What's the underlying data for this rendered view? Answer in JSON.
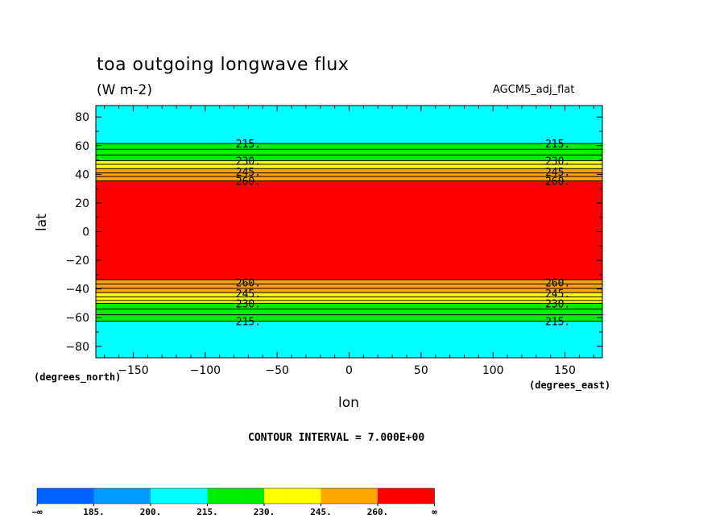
{
  "chart_data": {
    "type": "contour",
    "title": "toa outgoing longwave flux",
    "units": "(W m-2)",
    "dataset": "AGCM5_adj_flat",
    "xlabel": "lon",
    "ylabel": "lat",
    "x_units": "(degrees_east)",
    "y_units": "(degrees_north)",
    "xlim": [
      -176,
      176
    ],
    "ylim": [
      -88,
      88
    ],
    "x_ticks": [
      -150,
      -100,
      -50,
      0,
      50,
      100,
      150
    ],
    "x_tick_labels": [
      "−150",
      "−100",
      "−50",
      "0",
      "50",
      "100",
      "150"
    ],
    "y_ticks": [
      80,
      60,
      40,
      20,
      0,
      -20,
      -40,
      -60,
      -80
    ],
    "y_tick_labels": [
      "80",
      "60",
      "40",
      "20",
      "0",
      "−20",
      "−40",
      "−60",
      "−80"
    ],
    "contour_interval": "CONTOUR INTERVAL = 7.000E+00",
    "latitude_bands": [
      {
        "lat_from": 88,
        "lat_to": 61.5,
        "color": "#00ffff"
      },
      {
        "lat_from": 61.5,
        "lat_to": 49.5,
        "color": "#00ee00"
      },
      {
        "lat_from": 49.5,
        "lat_to": 44.0,
        "color": "#ffff00"
      },
      {
        "lat_from": 44.0,
        "lat_to": 35.5,
        "color": "#ffa500"
      },
      {
        "lat_from": 35.5,
        "lat_to": -33.5,
        "color": "#ff0000"
      },
      {
        "lat_from": -33.5,
        "lat_to": -42.5,
        "color": "#ffa500"
      },
      {
        "lat_from": -42.5,
        "lat_to": -50.0,
        "color": "#ffff00"
      },
      {
        "lat_from": -50.0,
        "lat_to": -62.5,
        "color": "#00ee00"
      },
      {
        "lat_from": -62.5,
        "lat_to": -88,
        "color": "#00ffff"
      }
    ],
    "contour_lines": [
      61.5,
      57.5,
      53.5,
      49.5,
      47.0,
      44.0,
      41.0,
      38.5,
      35.5,
      -33.5,
      -36.5,
      -39.5,
      -42.5,
      -45.5,
      -48.0,
      -50.0,
      -54.0,
      -58.0,
      -62.5
    ],
    "contour_labels": [
      {
        "text": "215.",
        "lat": 61.5
      },
      {
        "text": "230.",
        "lat": 49.5
      },
      {
        "text": "245.",
        "lat": 42.0
      },
      {
        "text": "260.",
        "lat": 35.5
      },
      {
        "text": "260.",
        "lat": -35.5
      },
      {
        "text": "245.",
        "lat": -43.0
      },
      {
        "text": "230.",
        "lat": -50.0
      },
      {
        "text": "215.",
        "lat": -62.5
      }
    ],
    "contour_label_lons": [
      -70,
      145
    ],
    "colorbar": {
      "colors": [
        "#0064ff",
        "#009bff",
        "#00ffff",
        "#00ee00",
        "#ffff00",
        "#ffa500",
        "#ff0000"
      ],
      "labels": [
        "−∞",
        "185.",
        "200.",
        "215.",
        "230.",
        "245.",
        "260.",
        "∞"
      ]
    }
  }
}
